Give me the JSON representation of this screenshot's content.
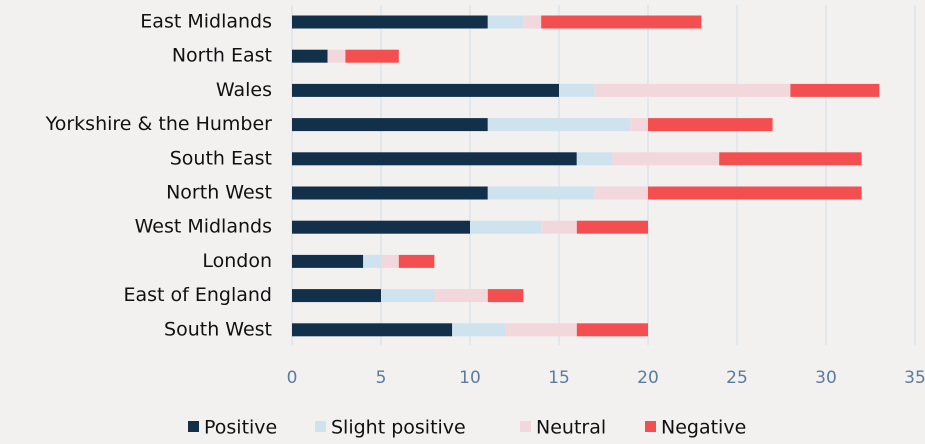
{
  "chart_data": {
    "type": "stacked_barh",
    "categories": [
      "East Midlands",
      "North East",
      "Wales",
      "Yorkshire & the Humber",
      "South East",
      "North West",
      "West Midlands",
      "London",
      "East of England",
      "South West"
    ],
    "series": [
      {
        "name": "Positive",
        "color": "#12304a",
        "values": [
          11,
          2,
          15,
          11,
          16,
          11,
          10,
          4,
          5,
          9
        ]
      },
      {
        "name": "Slight positive",
        "color": "#cfe3ee",
        "values": [
          2,
          0,
          2,
          8,
          2,
          6,
          4,
          1,
          3,
          3
        ]
      },
      {
        "name": "Neutral",
        "color": "#f2d8dc",
        "values": [
          1,
          1,
          11,
          1,
          6,
          3,
          2,
          1,
          3,
          4
        ]
      },
      {
        "name": "Negative",
        "color": "#f44f50",
        "values": [
          9,
          3,
          5,
          7,
          8,
          12,
          4,
          2,
          2,
          4
        ]
      }
    ],
    "xlim": [
      0,
      35
    ],
    "xticks": [
      0,
      5,
      10,
      15,
      20,
      25,
      30,
      35
    ],
    "grid": true
  }
}
